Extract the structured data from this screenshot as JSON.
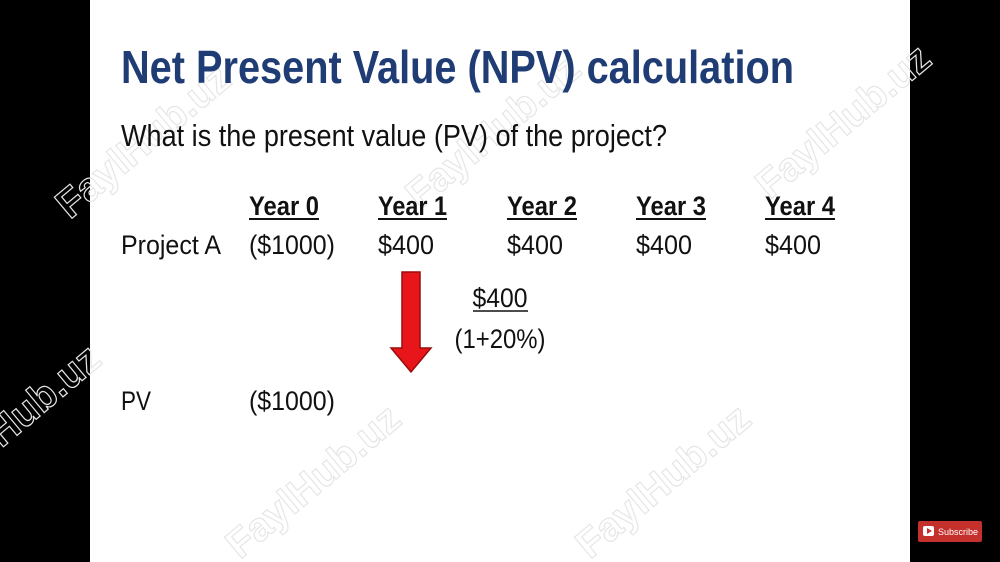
{
  "slide": {
    "title": "Net Present Value (NPV) calculation",
    "question": "What is the present value (PV) of the project?",
    "table": {
      "headers": [
        "Year 0",
        "Year 1",
        "Year 2",
        "Year 3",
        "Year 4"
      ],
      "rows": [
        {
          "label": "Project A",
          "cells": [
            "($1000)",
            "$400",
            "$400",
            "$400",
            "$400"
          ]
        }
      ]
    },
    "formula": {
      "numerator": "$400",
      "denominator": "(1+20%)"
    },
    "pv": {
      "label": "PV",
      "cells": [
        "($1000)"
      ]
    },
    "watermark": "FaylHub.uz"
  },
  "player": {
    "subscribe": "Subscribe"
  }
}
